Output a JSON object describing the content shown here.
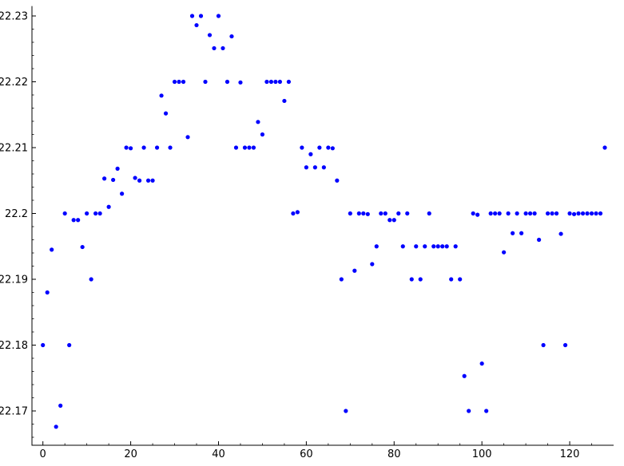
{
  "chart_data": {
    "type": "scatter",
    "title": "",
    "xlabel": "",
    "ylabel": "",
    "xlim": [
      -0.5,
      130
    ],
    "ylim": [
      22.1655,
      22.2315
    ],
    "x_ticks": [
      0,
      20,
      40,
      60,
      80,
      100,
      120
    ],
    "x_tick_labels": [
      "0",
      "20",
      "40",
      "60",
      "80",
      "100",
      "120"
    ],
    "y_ticks": [
      22.17,
      22.18,
      22.19,
      22.2,
      22.21,
      22.22,
      22.23
    ],
    "y_tick_labels": [
      "22.17",
      "22.18",
      "22.19",
      "22.2",
      "22.21",
      "22.22",
      "22.23"
    ],
    "grid": false,
    "legend": "none",
    "marker_color": "#0000ff",
    "series": [
      {
        "points": [
          [
            0,
            22.18
          ],
          [
            1,
            22.188
          ],
          [
            2,
            22.1945
          ],
          [
            3,
            22.1676
          ],
          [
            4,
            22.1708
          ],
          [
            5,
            22.2
          ],
          [
            6,
            22.18
          ],
          [
            7,
            22.199
          ],
          [
            8,
            22.199
          ],
          [
            9,
            22.1949
          ],
          [
            10,
            22.2
          ],
          [
            11,
            22.19
          ],
          [
            12,
            22.2
          ],
          [
            13,
            22.2
          ],
          [
            14,
            22.2053
          ],
          [
            15,
            22.201
          ],
          [
            16,
            22.2051
          ],
          [
            17,
            22.2068
          ],
          [
            18,
            22.203
          ],
          [
            19,
            22.21
          ],
          [
            20,
            22.2099
          ],
          [
            21,
            22.2054
          ],
          [
            22,
            22.205
          ],
          [
            23,
            22.21
          ],
          [
            24,
            22.205
          ],
          [
            25,
            22.205
          ],
          [
            26,
            22.21
          ],
          [
            27,
            22.2179
          ],
          [
            28,
            22.2152
          ],
          [
            29,
            22.21
          ],
          [
            30,
            22.22
          ],
          [
            31,
            22.22
          ],
          [
            32,
            22.22
          ],
          [
            33,
            22.2116
          ],
          [
            34,
            22.23
          ],
          [
            35,
            22.2286
          ],
          [
            36,
            22.23
          ],
          [
            37,
            22.22
          ],
          [
            38,
            22.2271
          ],
          [
            39,
            22.2251
          ],
          [
            40,
            22.23
          ],
          [
            41,
            22.2251
          ],
          [
            42,
            22.22
          ],
          [
            43,
            22.2269
          ],
          [
            44,
            22.21
          ],
          [
            45,
            22.2199
          ],
          [
            46,
            22.21
          ],
          [
            47,
            22.21
          ],
          [
            48,
            22.21
          ],
          [
            49,
            22.2139
          ],
          [
            50,
            22.212
          ],
          [
            51,
            22.22
          ],
          [
            52,
            22.22
          ],
          [
            53,
            22.22
          ],
          [
            54,
            22.22
          ],
          [
            55,
            22.2171
          ],
          [
            56,
            22.22
          ],
          [
            57,
            22.2
          ],
          [
            58,
            22.2002
          ],
          [
            59,
            22.21
          ],
          [
            60,
            22.207
          ],
          [
            61,
            22.209
          ],
          [
            62,
            22.207
          ],
          [
            63,
            22.21
          ],
          [
            64,
            22.207
          ],
          [
            65,
            22.21
          ],
          [
            66,
            22.2099
          ],
          [
            67,
            22.205
          ],
          [
            68,
            22.19
          ],
          [
            69,
            22.17
          ],
          [
            70,
            22.2
          ],
          [
            71,
            22.1913
          ],
          [
            72,
            22.2
          ],
          [
            73,
            22.2
          ],
          [
            74,
            22.1999
          ],
          [
            75,
            22.1923
          ],
          [
            76,
            22.195
          ],
          [
            77,
            22.2
          ],
          [
            78,
            22.2
          ],
          [
            79,
            22.199
          ],
          [
            80,
            22.199
          ],
          [
            81,
            22.2
          ],
          [
            82,
            22.195
          ],
          [
            83,
            22.2
          ],
          [
            84,
            22.19
          ],
          [
            85,
            22.195
          ],
          [
            86,
            22.19
          ],
          [
            87,
            22.195
          ],
          [
            88,
            22.2
          ],
          [
            89,
            22.195
          ],
          [
            90,
            22.195
          ],
          [
            91,
            22.195
          ],
          [
            92,
            22.195
          ],
          [
            93,
            22.19
          ],
          [
            94,
            22.195
          ],
          [
            95,
            22.19
          ],
          [
            96,
            22.1753
          ],
          [
            97,
            22.17
          ],
          [
            98,
            22.2
          ],
          [
            99,
            22.1998
          ],
          [
            100,
            22.1772
          ],
          [
            101,
            22.17
          ],
          [
            102,
            22.2
          ],
          [
            103,
            22.2
          ],
          [
            104,
            22.2
          ],
          [
            105,
            22.1941
          ],
          [
            106,
            22.2
          ],
          [
            107,
            22.197
          ],
          [
            108,
            22.2
          ],
          [
            109,
            22.197
          ],
          [
            110,
            22.2
          ],
          [
            111,
            22.2
          ],
          [
            112,
            22.2
          ],
          [
            113,
            22.196
          ],
          [
            114,
            22.18
          ],
          [
            115,
            22.2
          ],
          [
            116,
            22.2
          ],
          [
            117,
            22.2
          ],
          [
            118,
            22.1969
          ],
          [
            119,
            22.18
          ],
          [
            120,
            22.2
          ],
          [
            121,
            22.1999
          ],
          [
            122,
            22.2
          ],
          [
            123,
            22.2
          ],
          [
            124,
            22.2
          ],
          [
            125,
            22.2
          ],
          [
            126,
            22.2
          ],
          [
            127,
            22.2
          ],
          [
            128,
            22.21
          ]
        ]
      }
    ]
  }
}
